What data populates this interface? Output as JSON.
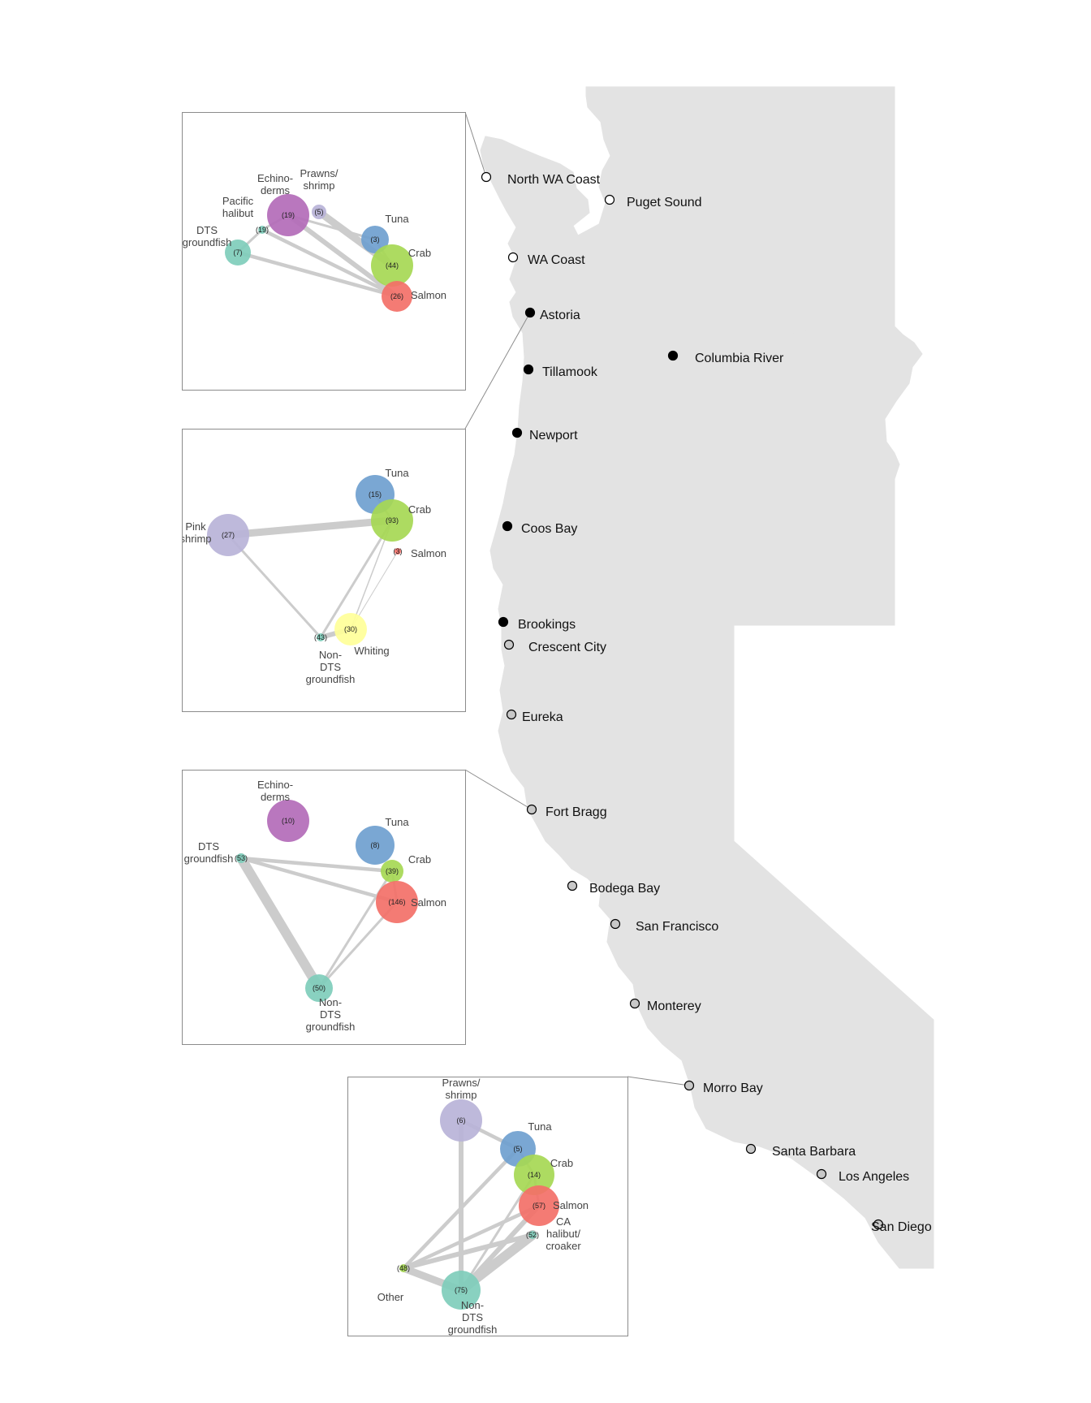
{
  "colors": {
    "land": "#e3e3e3",
    "inset_border": "#8c8c8c",
    "edge": "#cccccc",
    "port_WA": "#ffffff",
    "port_OR": "#000000",
    "port_CA": "#c8c8c8"
  },
  "ports": [
    {
      "id": "north-wa-coast",
      "name": "North WA Coast",
      "state": "WA"
    },
    {
      "id": "puget-sound",
      "name": "Puget Sound",
      "state": "WA"
    },
    {
      "id": "wa-coast",
      "name": "WA Coast",
      "state": "WA"
    },
    {
      "id": "astoria",
      "name": "Astoria",
      "state": "OR"
    },
    {
      "id": "columbia-river",
      "name": "Columbia River",
      "state": "OR"
    },
    {
      "id": "tillamook",
      "name": "Tillamook",
      "state": "OR"
    },
    {
      "id": "newport",
      "name": "Newport",
      "state": "OR"
    },
    {
      "id": "coos-bay",
      "name": "Coos Bay",
      "state": "OR"
    },
    {
      "id": "brookings",
      "name": "Brookings",
      "state": "OR"
    },
    {
      "id": "crescent-city",
      "name": "Crescent City",
      "state": "CA"
    },
    {
      "id": "eureka",
      "name": "Eureka",
      "state": "CA"
    },
    {
      "id": "fort-bragg",
      "name": "Fort Bragg",
      "state": "CA"
    },
    {
      "id": "bodega-bay",
      "name": "Bodega Bay",
      "state": "CA"
    },
    {
      "id": "san-francisco",
      "name": "San Francisco",
      "state": "CA"
    },
    {
      "id": "monterey",
      "name": "Monterey",
      "state": "CA"
    },
    {
      "id": "morro-bay",
      "name": "Morro Bay",
      "state": "CA"
    },
    {
      "id": "santa-barbara",
      "name": "Santa Barbara",
      "state": "CA"
    },
    {
      "id": "los-angeles",
      "name": "Los Angeles",
      "state": "CA"
    },
    {
      "id": "san-diego",
      "name": "San Diego",
      "state": "CA"
    }
  ],
  "insets": [
    {
      "id": "north-wa-coast",
      "port": "North WA Coast",
      "nodes": [
        {
          "id": "echinoderms",
          "label": [
            "Echino-",
            "derms"
          ],
          "count": "(19)",
          "color": "#b36bb8"
        },
        {
          "id": "prawns",
          "label": [
            "Prawns/",
            "shrimp"
          ],
          "count": "(5)",
          "color": "#b8b3d8"
        },
        {
          "id": "pacific-halibut",
          "label": [
            "Pacific",
            "halibut"
          ],
          "count": "(19)",
          "color": "#7fcdbb"
        },
        {
          "id": "dts",
          "label": [
            "DTS",
            "groundfish"
          ],
          "count": "(7)",
          "color": "#7fcdbb"
        },
        {
          "id": "tuna",
          "label": [
            "Tuna"
          ],
          "count": "(3)",
          "color": "#6f9fcf"
        },
        {
          "id": "crab",
          "label": [
            "Crab"
          ],
          "count": "(44)",
          "color": "#a6d854"
        },
        {
          "id": "salmon",
          "label": [
            "Salmon"
          ],
          "count": "(26)",
          "color": "#f37068"
        }
      ],
      "edges": [
        {
          "from": "prawns",
          "to": "crab",
          "weight": 3
        },
        {
          "from": "echinoderms",
          "to": "salmon",
          "weight": 2
        },
        {
          "from": "echinoderms",
          "to": "tuna",
          "weight": 1
        },
        {
          "from": "pacific-halibut",
          "to": "salmon",
          "weight": 1.5
        },
        {
          "from": "dts",
          "to": "salmon",
          "weight": 1.5
        },
        {
          "from": "pacific-halibut",
          "to": "dts",
          "weight": 1
        },
        {
          "from": "pacific-halibut",
          "to": "echinoderms",
          "weight": 1
        },
        {
          "from": "tuna",
          "to": "crab",
          "weight": 1
        }
      ]
    },
    {
      "id": "astoria",
      "port": "Astoria",
      "nodes": [
        {
          "id": "tuna",
          "label": [
            "Tuna"
          ],
          "count": "(15)",
          "color": "#6f9fcf"
        },
        {
          "id": "crab",
          "label": [
            "Crab"
          ],
          "count": "(93)",
          "color": "#a6d854"
        },
        {
          "id": "pink-shrimp",
          "label": [
            "Pink",
            "shrimp"
          ],
          "count": "(27)",
          "color": "#b8b3d8"
        },
        {
          "id": "salmon",
          "label": [
            "Salmon"
          ],
          "count": "(3)",
          "color": "#f37068"
        },
        {
          "id": "whiting",
          "label": [
            "Whiting"
          ],
          "count": "(30)",
          "color": "#ffff99"
        },
        {
          "id": "non-dts",
          "label": [
            "Non-",
            "DTS",
            "groundfish"
          ],
          "count": "(43)",
          "color": "#7fcdbb"
        }
      ],
      "edges": [
        {
          "from": "pink-shrimp",
          "to": "crab",
          "weight": 3
        },
        {
          "from": "pink-shrimp",
          "to": "non-dts",
          "weight": 1
        },
        {
          "from": "crab",
          "to": "non-dts",
          "weight": 1
        },
        {
          "from": "crab",
          "to": "whiting",
          "weight": 0.5
        },
        {
          "from": "salmon",
          "to": "whiting",
          "weight": 0.3
        },
        {
          "from": "tuna",
          "to": "crab",
          "weight": 1
        },
        {
          "from": "whiting",
          "to": "non-dts",
          "weight": 2
        }
      ]
    },
    {
      "id": "fort-bragg",
      "port": "Fort Bragg",
      "nodes": [
        {
          "id": "echinoderms",
          "label": [
            "Echino-",
            "derms"
          ],
          "count": "(10)",
          "color": "#b36bb8"
        },
        {
          "id": "tuna",
          "label": [
            "Tuna"
          ],
          "count": "(8)",
          "color": "#6f9fcf"
        },
        {
          "id": "dts",
          "label": [
            "DTS",
            "groundfish"
          ],
          "count": "(53)",
          "color": "#7fcdbb"
        },
        {
          "id": "crab",
          "label": [
            "Crab"
          ],
          "count": "(39)",
          "color": "#a6d854"
        },
        {
          "id": "salmon",
          "label": [
            "Salmon"
          ],
          "count": "(146)",
          "color": "#f37068"
        },
        {
          "id": "non-dts",
          "label": [
            "Non-",
            "DTS",
            "groundfish"
          ],
          "count": "(50)",
          "color": "#7fcdbb"
        }
      ],
      "edges": [
        {
          "from": "dts",
          "to": "non-dts",
          "weight": 4
        },
        {
          "from": "dts",
          "to": "crab",
          "weight": 1.5
        },
        {
          "from": "dts",
          "to": "salmon",
          "weight": 1.5
        },
        {
          "from": "crab",
          "to": "non-dts",
          "weight": 1
        },
        {
          "from": "salmon",
          "to": "non-dts",
          "weight": 1
        },
        {
          "from": "crab",
          "to": "salmon",
          "weight": 1
        }
      ]
    },
    {
      "id": "morro-bay",
      "port": "Morro Bay",
      "nodes": [
        {
          "id": "prawns",
          "label": [
            "Prawns/",
            "shrimp"
          ],
          "count": "(6)",
          "color": "#b8b3d8"
        },
        {
          "id": "tuna",
          "label": [
            "Tuna"
          ],
          "count": "(5)",
          "color": "#6f9fcf"
        },
        {
          "id": "crab",
          "label": [
            "Crab"
          ],
          "count": "(14)",
          "color": "#a6d854"
        },
        {
          "id": "salmon",
          "label": [
            "Salmon"
          ],
          "count": "(57)",
          "color": "#f37068"
        },
        {
          "id": "ca-halibut",
          "label": [
            "CA",
            "halibut/",
            "croaker"
          ],
          "count": "(52)",
          "color": "#7fcdbb"
        },
        {
          "id": "other",
          "label": [
            "Other"
          ],
          "count": "(48)",
          "color": "#a6d854"
        },
        {
          "id": "non-dts",
          "label": [
            "Non-",
            "DTS",
            "groundfish"
          ],
          "count": "(75)",
          "color": "#7fcdbb"
        }
      ],
      "edges": [
        {
          "from": "prawns",
          "to": "non-dts",
          "weight": 2
        },
        {
          "from": "prawns",
          "to": "tuna",
          "weight": 1.5
        },
        {
          "from": "other",
          "to": "non-dts",
          "weight": 3
        },
        {
          "from": "other",
          "to": "salmon",
          "weight": 1.5
        },
        {
          "from": "other",
          "to": "tuna",
          "weight": 1.5
        },
        {
          "from": "other",
          "to": "ca-halibut",
          "weight": 2
        },
        {
          "from": "non-dts",
          "to": "ca-halibut",
          "weight": 4
        },
        {
          "from": "non-dts",
          "to": "salmon",
          "weight": 2
        },
        {
          "from": "non-dts",
          "to": "crab",
          "weight": 1
        },
        {
          "from": "tuna",
          "to": "crab",
          "weight": 1
        },
        {
          "from": "crab",
          "to": "salmon",
          "weight": 1
        }
      ]
    }
  ]
}
